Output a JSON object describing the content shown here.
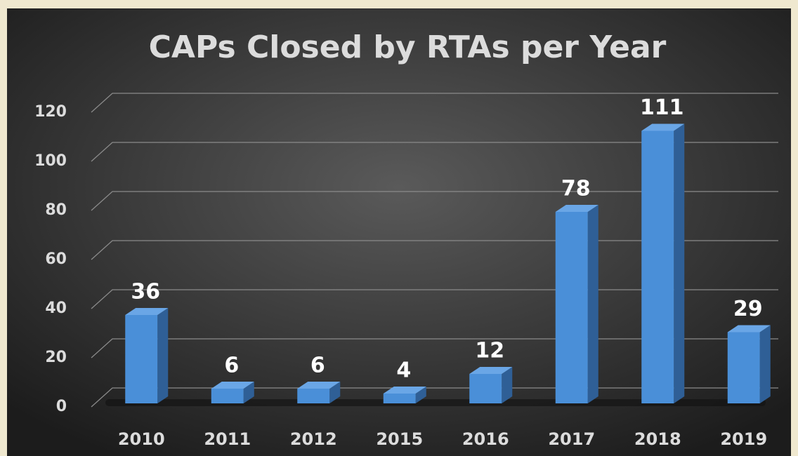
{
  "chart_data": {
    "type": "bar3d",
    "title": "CAPs Closed by RTAs per Year",
    "categories": [
      "2010",
      "2011",
      "2012",
      "2015",
      "2016",
      "2017",
      "2018",
      "2019"
    ],
    "values": [
      36,
      6,
      6,
      4,
      12,
      78,
      111,
      29
    ],
    "color": "#4a8fd8",
    "ylim": [
      0,
      120
    ],
    "yticks": [
      0,
      20,
      40,
      60,
      80,
      100,
      120
    ],
    "grid": true
  }
}
